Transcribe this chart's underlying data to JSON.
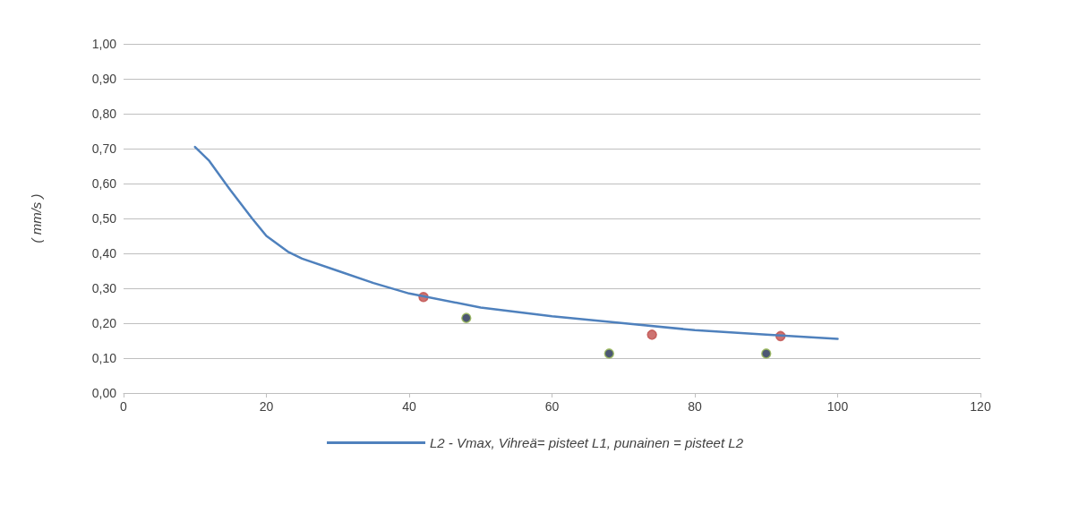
{
  "chart_data": {
    "type": "line",
    "ylabel": "( mm/s )",
    "legend": "bottom",
    "grid": "y",
    "xlim": [
      0,
      120
    ],
    "xticks": [
      0,
      20,
      40,
      60,
      80,
      100,
      120
    ],
    "ylim": [
      0,
      1
    ],
    "yticks": [
      {
        "value": 0,
        "label": "0,00"
      },
      {
        "value": 0.1,
        "label": "0,10"
      },
      {
        "value": 0.2,
        "label": "0,20"
      },
      {
        "value": 0.3,
        "label": "0,30"
      },
      {
        "value": 0.4,
        "label": "0,40"
      },
      {
        "value": 0.5,
        "label": "0,50"
      },
      {
        "value": 0.6,
        "label": "0,60"
      },
      {
        "value": 0.7,
        "label": "0,70"
      },
      {
        "value": 0.8,
        "label": "0,80"
      },
      {
        "value": 0.9,
        "label": "0,90"
      },
      {
        "value": 1,
        "label": "1,00"
      }
    ],
    "series": [
      {
        "name": "L2 - Vmax, Vihreä= pisteet L1, punainen = pisteet L2",
        "color": "#4f81bd",
        "marker": "none",
        "line_style": "solid",
        "x": [
          10,
          12,
          15,
          18,
          20,
          23,
          25,
          30,
          35,
          40,
          50,
          60,
          70,
          80,
          90,
          100
        ],
        "values": [
          0.705,
          0.665,
          0.58,
          0.5,
          0.45,
          0.405,
          0.385,
          0.35,
          0.315,
          0.285,
          0.245,
          0.22,
          0.2,
          0.18,
          0.167,
          0.155
        ]
      },
      {
        "type": "scatter",
        "color": "#1f2d50",
        "marker": "circle",
        "x": [
          48,
          68,
          90
        ],
        "values": [
          0.215,
          0.113,
          0.113
        ]
      },
      {
        "type": "scatter",
        "color": "#c0504d",
        "marker": "circle",
        "x": [
          42,
          74,
          92
        ],
        "values": [
          0.275,
          0.167,
          0.163
        ]
      }
    ]
  }
}
